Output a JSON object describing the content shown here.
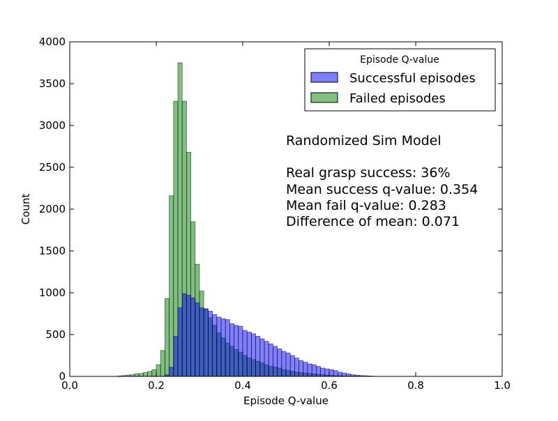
{
  "chart_data": {
    "type": "bar",
    "title": "",
    "xlabel": "Episode Q-value",
    "ylabel": "Count",
    "xlim": [
      0.0,
      1.0
    ],
    "ylim": [
      0,
      4000
    ],
    "xticks": [
      "0.0",
      "0.2",
      "0.4",
      "0.6",
      "0.8",
      "1.0"
    ],
    "yticks": [
      "0",
      "500",
      "1000",
      "1500",
      "2000",
      "2500",
      "3000",
      "3500",
      "4000"
    ],
    "grid": false,
    "bin_width": 0.01,
    "legend": {
      "title": "Episode Q-value",
      "placement": "top-right",
      "entries": [
        "Successful episodes",
        "Failed episodes"
      ]
    },
    "series": [
      {
        "name": "Successful episodes",
        "color": "#0000ff",
        "bins_start": [
          0.22,
          0.23,
          0.24,
          0.25,
          0.26,
          0.27,
          0.28,
          0.29,
          0.3,
          0.31,
          0.32,
          0.33,
          0.34,
          0.35,
          0.36,
          0.37,
          0.38,
          0.39,
          0.4,
          0.41,
          0.42,
          0.43,
          0.44,
          0.45,
          0.46,
          0.47,
          0.48,
          0.49,
          0.5,
          0.51,
          0.52,
          0.53,
          0.54,
          0.55,
          0.56,
          0.57,
          0.58,
          0.59,
          0.6,
          0.61,
          0.62,
          0.63,
          0.64,
          0.65,
          0.66,
          0.67,
          0.68,
          0.69
        ],
        "values": [
          20,
          110,
          480,
          820,
          990,
          970,
          940,
          880,
          820,
          810,
          780,
          740,
          710,
          690,
          680,
          630,
          610,
          600,
          550,
          530,
          510,
          480,
          450,
          420,
          390,
          360,
          330,
          300,
          280,
          250,
          220,
          190,
          170,
          150,
          140,
          120,
          100,
          90,
          80,
          70,
          50,
          40,
          30,
          20,
          15,
          10,
          8,
          5
        ]
      },
      {
        "name": "Failed episodes",
        "color": "#008000",
        "bins_start": [
          0.11,
          0.12,
          0.13,
          0.14,
          0.15,
          0.16,
          0.17,
          0.18,
          0.19,
          0.2,
          0.21,
          0.22,
          0.23,
          0.24,
          0.25,
          0.26,
          0.27,
          0.28,
          0.29,
          0.3,
          0.31,
          0.32,
          0.33,
          0.34,
          0.35,
          0.36,
          0.37,
          0.38,
          0.39,
          0.4,
          0.41,
          0.42,
          0.43,
          0.44,
          0.45,
          0.46,
          0.47,
          0.48,
          0.49,
          0.5,
          0.51,
          0.52,
          0.53,
          0.54,
          0.55,
          0.56,
          0.57,
          0.58,
          0.59,
          0.6,
          0.61,
          0.62,
          0.63,
          0.64,
          0.65,
          0.66,
          0.67
        ],
        "values": [
          5,
          10,
          15,
          20,
          30,
          35,
          45,
          60,
          80,
          140,
          310,
          930,
          2160,
          3290,
          3750,
          3290,
          2680,
          1850,
          1340,
          1020,
          800,
          700,
          610,
          520,
          460,
          400,
          360,
          320,
          290,
          250,
          220,
          200,
          180,
          160,
          140,
          120,
          110,
          100,
          80,
          70,
          60,
          50,
          45,
          40,
          35,
          30,
          25,
          20,
          15,
          12,
          10,
          8,
          5,
          4,
          3,
          2,
          1
        ]
      }
    ],
    "annotations": [
      "Randomized Sim Model",
      "Real grasp success: 36%",
      "Mean success q-value: 0.354",
      "Mean fail q-value: 0.283",
      "Difference of mean: 0.071"
    ]
  }
}
